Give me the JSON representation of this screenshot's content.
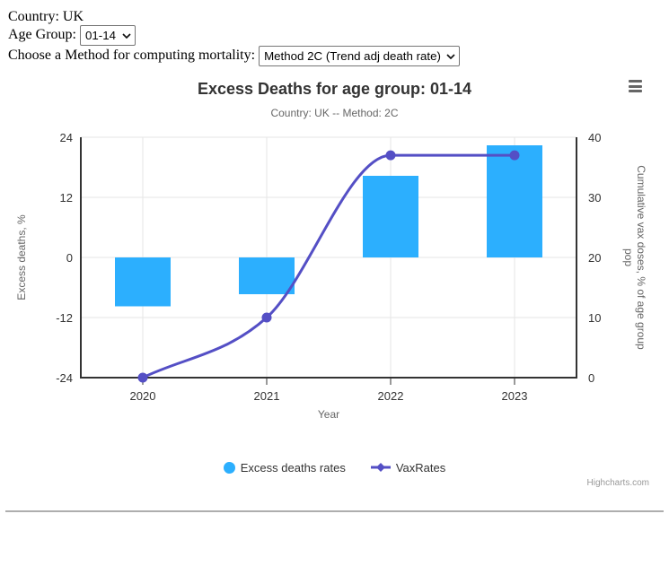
{
  "controls": {
    "country_text": "Country: UK",
    "age_group_label": "Age Group:",
    "age_group_value": "01-14",
    "method_label": "Choose a Method for computing mortality:",
    "method_value": "Method 2C (Trend adj death rate)"
  },
  "chart": {
    "title": "Excess Deaths for age group: 01-14",
    "subtitle": "Country: UK -- Method: 2C",
    "credits": "Highcharts.com",
    "colors": {
      "bar": "#2CAFFE",
      "line": "#544FC5",
      "grid": "#E6E6E6",
      "axis_line": "#333333",
      "tick_label": "#333333",
      "axis_title": "#666666",
      "title": "#333333",
      "subtitle": "#666666",
      "credits": "#999999"
    }
  },
  "chart_data": {
    "type": "bar",
    "subtype": "column + spline combo, dual y-axis",
    "categories": [
      "2020",
      "2021",
      "2022",
      "2023"
    ],
    "series": [
      {
        "name": "Excess deaths rates",
        "type": "bar",
        "y_axis": "left",
        "color": "#2CAFFE",
        "values": [
          -9.8,
          -7.3,
          16.3,
          22.4
        ]
      },
      {
        "name": "VaxRates",
        "type": "spline",
        "y_axis": "right",
        "color": "#544FC5",
        "values": [
          0,
          10,
          37,
          37
        ]
      }
    ],
    "xlabel": "Year",
    "y_left": {
      "label": "Excess deaths, %",
      "min": -24,
      "max": 24,
      "ticks": [
        24,
        12,
        0,
        -12,
        -24
      ]
    },
    "y_right": {
      "label": "Cumulative vax doses, % of age group pop",
      "label_lines": [
        "Cumulative vax doses, % of age group",
        "pop"
      ],
      "min": 0,
      "max": 40,
      "ticks": [
        40,
        30,
        20,
        10,
        0
      ]
    },
    "grid": true,
    "legend_position": "bottom-center"
  }
}
